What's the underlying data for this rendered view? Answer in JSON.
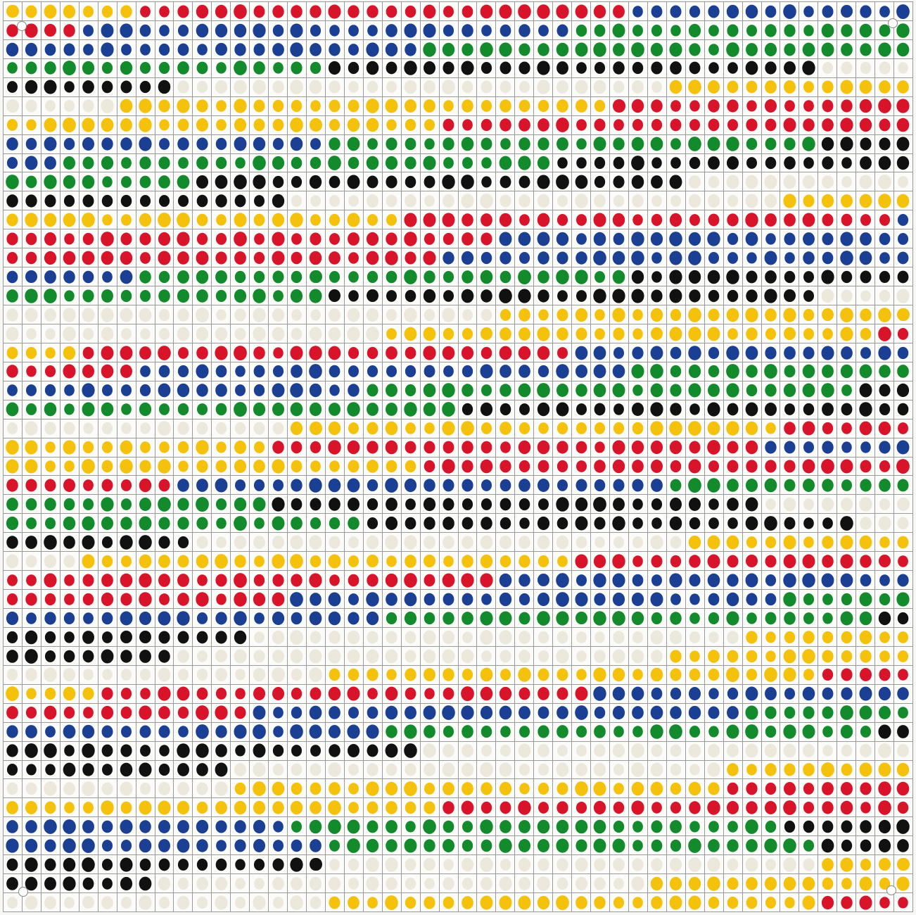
{
  "artwork": {
    "grid": {
      "rows": 48,
      "columns": 48
    },
    "palette": {
      "cream": "#ece8dc",
      "yellow": "#f4c20d",
      "red": "#d8142a",
      "blue": "#1b3f93",
      "green": "#138a2b",
      "black": "#111111"
    },
    "row_color_cycle": [
      "cream",
      "yellow",
      "red",
      "blue",
      "green",
      "black"
    ],
    "grid_line_color": "#9a9a9a"
  }
}
